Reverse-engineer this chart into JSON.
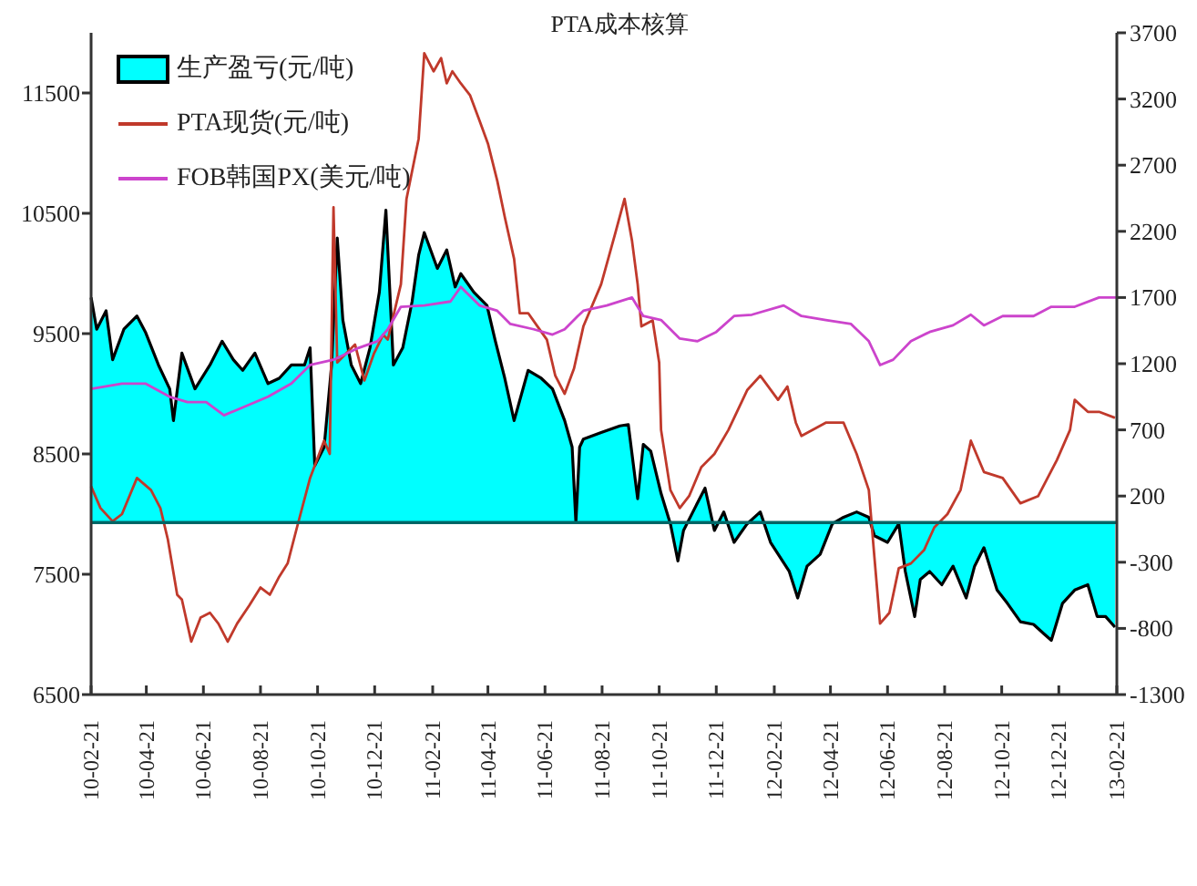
{
  "chart_data": {
    "type": "line",
    "title": "PTA成本核算",
    "xlim": [
      "2010-02-21",
      "2013-02-21"
    ],
    "xticks": [
      {
        "value": "2010-02-21",
        "label": "10-02-21"
      },
      {
        "value": "2010-04-21",
        "label": "10-04-21"
      },
      {
        "value": "2010-06-21",
        "label": "10-06-21"
      },
      {
        "value": "2010-08-21",
        "label": "10-08-21"
      },
      {
        "value": "2010-10-21",
        "label": "10-10-21"
      },
      {
        "value": "2010-12-21",
        "label": "10-12-21"
      },
      {
        "value": "2011-02-21",
        "label": "11-02-21"
      },
      {
        "value": "2011-04-21",
        "label": "11-04-21"
      },
      {
        "value": "2011-06-21",
        "label": "11-06-21"
      },
      {
        "value": "2011-08-21",
        "label": "11-08-21"
      },
      {
        "value": "2011-10-21",
        "label": "11-10-21"
      },
      {
        "value": "2011-12-21",
        "label": "11-12-21"
      },
      {
        "value": "2012-02-21",
        "label": "12-02-21"
      },
      {
        "value": "2012-04-21",
        "label": "12-04-21"
      },
      {
        "value": "2012-06-21",
        "label": "12-06-21"
      },
      {
        "value": "2012-08-21",
        "label": "12-08-21"
      },
      {
        "value": "2012-10-21",
        "label": "12-10-21"
      },
      {
        "value": "2012-12-21",
        "label": "12-12-21"
      },
      {
        "value": "2013-02-21",
        "label": "13-02-21"
      }
    ],
    "ylim": [
      6500,
      12000
    ],
    "yticks": [
      6500,
      7500,
      8500,
      9500,
      10500,
      11500
    ],
    "y2lim": [
      -1300,
      3700
    ],
    "y2ticks": [
      -1300,
      -800,
      -300,
      200,
      700,
      1200,
      1700,
      2200,
      2700,
      3200,
      3700
    ],
    "legend": "top left",
    "grid": false,
    "ref_lines": [
      {
        "axis": "y2",
        "value": 0,
        "color": "#006666"
      }
    ],
    "series": [
      {
        "name": "生产盈亏(元/吨)",
        "type": "area",
        "axis": "y2",
        "color": "#00ffff",
        "x": [
          "2010-02-21",
          "2010-02-27",
          "2010-03-09",
          "2010-03-16",
          "2010-03-28",
          "2010-04-11",
          "2010-04-20",
          "2010-05-04",
          "2010-05-16",
          "2010-05-20",
          "2010-05-29",
          "2010-06-12",
          "2010-06-28",
          "2010-07-11",
          "2010-07-23",
          "2010-08-02",
          "2010-08-15",
          "2010-08-29",
          "2010-09-10",
          "2010-09-23",
          "2010-10-07",
          "2010-10-13",
          "2010-10-18",
          "2010-10-28",
          "2010-11-05",
          "2010-11-11",
          "2010-11-17",
          "2010-11-26",
          "2010-12-06",
          "2010-12-16",
          "2010-12-26",
          "2011-01-02",
          "2011-01-10",
          "2011-01-20",
          "2011-01-30",
          "2011-02-06",
          "2011-02-12",
          "2011-02-26",
          "2011-03-08",
          "2011-03-17",
          "2011-03-23",
          "2011-04-06",
          "2011-04-20",
          "2011-04-29",
          "2011-05-09",
          "2011-05-19",
          "2011-06-03",
          "2011-06-17",
          "2011-06-29",
          "2011-07-12",
          "2011-07-20",
          "2011-07-24",
          "2011-07-28",
          "2011-08-01",
          "2011-08-20",
          "2011-09-09",
          "2011-09-18",
          "2011-09-28",
          "2011-10-04",
          "2011-10-12",
          "2011-10-23",
          "2011-11-02",
          "2011-11-10",
          "2011-11-16",
          "2011-11-26",
          "2011-12-09",
          "2011-12-19",
          "2011-12-29",
          "2012-01-09",
          "2012-01-23",
          "2012-02-06",
          "2012-02-17",
          "2012-03-08",
          "2012-03-17",
          "2012-03-27",
          "2012-04-10",
          "2012-04-23",
          "2012-05-05",
          "2012-05-19",
          "2012-06-01",
          "2012-06-07",
          "2012-06-21",
          "2012-07-03",
          "2012-07-10",
          "2012-07-20",
          "2012-07-26",
          "2012-08-05",
          "2012-08-18",
          "2012-08-30",
          "2012-09-13",
          "2012-09-22",
          "2012-10-02",
          "2012-10-16",
          "2012-10-27",
          "2012-11-10",
          "2012-11-24",
          "2012-12-05",
          "2012-12-13",
          "2012-12-25",
          "2013-01-07",
          "2013-01-21",
          "2013-01-31",
          "2013-02-09",
          "2013-02-19"
        ],
        "values": [
          1700,
          1460,
          1600,
          1230,
          1460,
          1560,
          1440,
          1190,
          1010,
          770,
          1280,
          1010,
          1190,
          1370,
          1230,
          1150,
          1280,
          1050,
          1090,
          1190,
          1190,
          1320,
          430,
          570,
          1190,
          2150,
          1530,
          1190,
          1050,
          1320,
          1740,
          2360,
          1190,
          1320,
          1670,
          2020,
          2190,
          1920,
          2060,
          1780,
          1880,
          1740,
          1640,
          1370,
          1090,
          770,
          1150,
          1090,
          1010,
          770,
          570,
          0,
          570,
          630,
          680,
          730,
          740,
          180,
          590,
          540,
          220,
          -10,
          -290,
          -60,
          80,
          260,
          -60,
          80,
          -150,
          -10,
          80,
          -150,
          -370,
          -570,
          -330,
          -240,
          -10,
          40,
          80,
          40,
          -100,
          -150,
          -10,
          -370,
          -710,
          -430,
          -370,
          -470,
          -330,
          -570,
          -330,
          -190,
          -510,
          -610,
          -750,
          -770,
          -840,
          -890,
          -610,
          -510,
          -470,
          -710,
          -710,
          -790
        ]
      },
      {
        "name": "PTA现货(元/吨)",
        "axis": "y",
        "color": "#c0392b",
        "x": [
          "2010-02-21",
          "2010-03-03",
          "2010-03-16",
          "2010-03-26",
          "2010-04-11",
          "2010-04-26",
          "2010-05-06",
          "2010-05-14",
          "2010-05-24",
          "2010-05-29",
          "2010-06-08",
          "2010-06-18",
          "2010-06-28",
          "2010-07-07",
          "2010-07-17",
          "2010-07-27",
          "2010-08-09",
          "2010-08-21",
          "2010-08-31",
          "2010-09-10",
          "2010-09-19",
          "2010-09-29",
          "2010-10-13",
          "2010-10-28",
          "2010-11-03",
          "2010-11-07",
          "2010-11-11",
          "2010-11-30",
          "2010-12-10",
          "2010-12-20",
          "2010-12-30",
          "2011-01-04",
          "2011-01-18",
          "2011-01-24",
          "2011-02-06",
          "2011-02-12",
          "2011-02-22",
          "2011-03-02",
          "2011-03-08",
          "2011-03-14",
          "2011-03-23",
          "2011-04-02",
          "2011-04-12",
          "2011-04-21",
          "2011-05-01",
          "2011-05-09",
          "2011-05-19",
          "2011-05-25",
          "2011-06-03",
          "2011-06-13",
          "2011-06-23",
          "2011-07-02",
          "2011-07-12",
          "2011-07-22",
          "2011-08-01",
          "2011-08-20",
          "2011-09-05",
          "2011-09-14",
          "2011-09-22",
          "2011-09-28",
          "2011-10-02",
          "2011-10-14",
          "2011-10-21",
          "2011-10-23",
          "2011-11-02",
          "2011-11-12",
          "2011-11-22",
          "2011-12-05",
          "2011-12-19",
          "2012-01-03",
          "2012-01-23",
          "2012-02-06",
          "2012-02-25",
          "2012-03-06",
          "2012-03-15",
          "2012-03-21",
          "2012-04-16",
          "2012-05-05",
          "2012-05-19",
          "2012-06-01",
          "2012-06-07",
          "2012-06-13",
          "2012-06-23",
          "2012-07-03",
          "2012-07-16",
          "2012-07-30",
          "2012-08-10",
          "2012-08-24",
          "2012-09-07",
          "2012-09-18",
          "2012-10-02",
          "2012-10-22",
          "2012-11-10",
          "2012-11-29",
          "2012-12-19",
          "2013-01-02",
          "2013-01-07",
          "2013-01-21",
          "2013-02-02",
          "2013-02-19"
        ],
        "values": [
          8230,
          8050,
          7940,
          8000,
          8300,
          8200,
          8050,
          7790,
          7330,
          7290,
          6940,
          7140,
          7180,
          7090,
          6940,
          7090,
          7240,
          7390,
          7330,
          7480,
          7590,
          7890,
          8300,
          8610,
          8500,
          10550,
          9260,
          9410,
          9110,
          9330,
          9490,
          9450,
          9910,
          10620,
          11120,
          11830,
          11680,
          11790,
          11580,
          11680,
          11580,
          11480,
          11270,
          11080,
          10770,
          10470,
          10120,
          9670,
          9670,
          9560,
          9450,
          9150,
          9000,
          9210,
          9560,
          9910,
          10360,
          10620,
          10270,
          9910,
          9560,
          9610,
          9260,
          8700,
          8200,
          8050,
          8150,
          8390,
          8500,
          8700,
          9030,
          9150,
          8950,
          9060,
          8760,
          8650,
          8760,
          8760,
          8500,
          8200,
          7640,
          7090,
          7180,
          7550,
          7590,
          7700,
          7890,
          8000,
          8200,
          8610,
          8350,
          8300,
          8090,
          8150,
          8450,
          8700,
          8950,
          8850,
          8850,
          8800
        ]
      },
      {
        "name": "FOB韩国PX(美元/吨)",
        "axis": "y2",
        "color": "#cc44cc",
        "x": [
          "2010-02-21",
          "2010-03-26",
          "2010-04-20",
          "2010-05-16",
          "2010-06-04",
          "2010-06-24",
          "2010-07-13",
          "2010-08-02",
          "2010-08-29",
          "2010-09-23",
          "2010-10-13",
          "2010-11-07",
          "2010-12-04",
          "2010-12-24",
          "2011-01-04",
          "2011-01-18",
          "2011-02-12",
          "2011-03-12",
          "2011-03-23",
          "2011-04-12",
          "2011-05-01",
          "2011-05-15",
          "2011-06-09",
          "2011-06-29",
          "2011-07-12",
          "2011-07-26",
          "2011-08-01",
          "2011-08-26",
          "2011-09-22",
          "2011-10-04",
          "2011-10-23",
          "2011-11-12",
          "2011-12-01",
          "2011-12-21",
          "2012-01-09",
          "2012-01-28",
          "2012-03-02",
          "2012-03-21",
          "2012-04-16",
          "2012-05-13",
          "2012-06-01",
          "2012-06-13",
          "2012-06-27",
          "2012-07-16",
          "2012-08-05",
          "2012-08-30",
          "2012-09-18",
          "2012-10-02",
          "2012-10-22",
          "2012-11-24",
          "2012-12-13",
          "2013-01-07",
          "2013-02-02",
          "2013-02-21"
        ],
        "values": [
          1010,
          1050,
          1050,
          950,
          910,
          910,
          810,
          870,
          950,
          1050,
          1190,
          1230,
          1320,
          1370,
          1460,
          1630,
          1640,
          1670,
          1780,
          1640,
          1600,
          1500,
          1460,
          1420,
          1460,
          1560,
          1600,
          1640,
          1700,
          1560,
          1530,
          1390,
          1370,
          1440,
          1560,
          1570,
          1640,
          1560,
          1530,
          1500,
          1370,
          1190,
          1230,
          1370,
          1440,
          1490,
          1570,
          1490,
          1560,
          1560,
          1630,
          1630,
          1700,
          1700
        ]
      }
    ]
  }
}
